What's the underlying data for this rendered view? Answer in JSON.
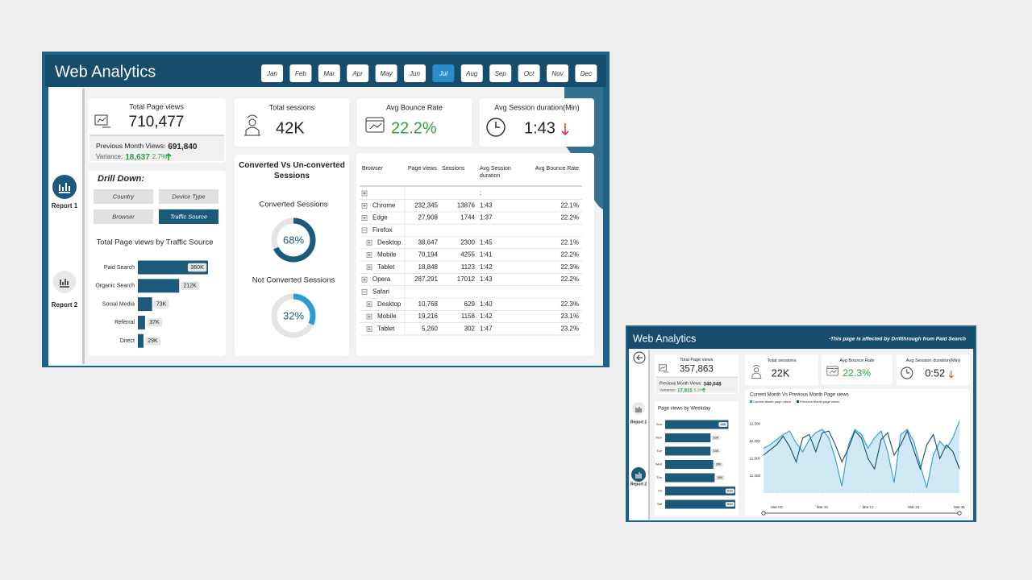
{
  "main": {
    "title": "Web Analytics",
    "months": [
      "Jan",
      "Feb",
      "Mar",
      "Apr",
      "May",
      "Jun",
      "Jul",
      "Aug",
      "Sep",
      "Oct",
      "Nov",
      "Dec"
    ],
    "selected_month": "Jul",
    "nav": [
      "Report 1",
      "Report 2"
    ],
    "page_views": {
      "label": "Total Page views",
      "value": "710,477",
      "previous_label": "Previous Month Views:",
      "previous": "691,840",
      "variance_label": "Variance:",
      "variance": "18,637",
      "variance_pct": "2.7%"
    },
    "sessions": {
      "label": "Total sessions",
      "value": "42K"
    },
    "bounce": {
      "label": "Avg Bounce Rate",
      "value": "22.2%"
    },
    "duration": {
      "label": "Avg Session duration(Min)",
      "value": "1:43"
    },
    "drill": {
      "title": "Drill Down:",
      "buttons": [
        "Country",
        "Device Type",
        "Browser",
        "Traffic Source"
      ],
      "selected": "Traffic Source"
    },
    "conversion": {
      "title": "Converted Vs Un-converted Sessions",
      "items": [
        {
          "label": "Converted Sessions",
          "value": 68,
          "value_label": "68%",
          "color": "#1b5a7a"
        },
        {
          "label": "Not Converted Sessions",
          "value": 32,
          "value_label": "32%",
          "color": "#2b9bd3"
        }
      ]
    },
    "table": {
      "columns": {
        "browser": "Browser",
        "page_views": "Page views",
        "sessions": "Sessions",
        "duration": "Avg Session duration",
        "bounce": "Avg Bounce Rate"
      },
      "rows": [
        {
          "expand": "plus",
          "duration": ":"
        },
        {
          "expand": "plus",
          "browser": "Chrome",
          "page_views": "232,345",
          "sessions": "13876",
          "duration": "1:43",
          "bounce": "22.1%"
        },
        {
          "expand": "plus",
          "browser": "Edge",
          "page_views": "27,908",
          "sessions": "1744",
          "duration": "1:37",
          "bounce": "22.2%"
        },
        {
          "expand": "minus",
          "browser": "Firefox"
        },
        {
          "expand": "plus",
          "level": 1,
          "browser": "Desktop",
          "page_views": "38,647",
          "sessions": "2300",
          "duration": "1:45",
          "bounce": "22.1%"
        },
        {
          "expand": "plus",
          "level": 1,
          "browser": "Mobile",
          "page_views": "70,194",
          "sessions": "4255",
          "duration": "1:41",
          "bounce": "22.2%"
        },
        {
          "expand": "plus",
          "level": 1,
          "browser": "Tablet",
          "page_views": "18,848",
          "sessions": "1123",
          "duration": "1:42",
          "bounce": "22.3%"
        },
        {
          "expand": "plus",
          "browser": "Opera",
          "page_views": "287,291",
          "sessions": "17012",
          "duration": "1:43",
          "bounce": "22.2%"
        },
        {
          "expand": "minus",
          "browser": "Safari"
        },
        {
          "expand": "plus",
          "level": 1,
          "browser": "Desktop",
          "page_views": "10,768",
          "sessions": "629",
          "duration": "1:40",
          "bounce": "22.3%"
        },
        {
          "expand": "plus",
          "level": 1,
          "browser": "Mobile",
          "page_views": "19,216",
          "sessions": "1158",
          "duration": "1:42",
          "bounce": "23.1%"
        },
        {
          "expand": "plus",
          "level": 1,
          "browser": "Tablet",
          "page_views": "5,260",
          "sessions": "302",
          "duration": "1:47",
          "bounce": "23.2%"
        }
      ]
    }
  },
  "drill_page": {
    "title": "Web Analytics",
    "note": "-This page is affected by Drillthrough from Paid Search",
    "nav": [
      "Report 1",
      "Report 2"
    ],
    "page_views": {
      "label": "Total Page views",
      "value": "357,863",
      "previous_label": "Previous Month Views:",
      "previous": "340,048",
      "variance_label": "Variance:",
      "variance": "17,815",
      "variance_pct": "5.2%"
    },
    "sessions": {
      "label": "Total sessions",
      "value": "22K"
    },
    "bounce": {
      "label": "Avg Bounce Rate",
      "value": "22.3%"
    },
    "duration": {
      "label": "Avg Session duration(Min)",
      "value": "0:52"
    }
  },
  "chart_data": [
    {
      "type": "bar",
      "orientation": "horizontal",
      "title": "Total Page views by Traffic Source",
      "categories": [
        "Paid Search",
        "Organic Search",
        "Social Media",
        "Referral",
        "Direct"
      ],
      "values": [
        360000,
        212000,
        73000,
        37000,
        29000
      ],
      "value_labels": [
        "360K",
        "212K",
        "73K",
        "37K",
        "29K"
      ],
      "color": "#1b5a7a"
    },
    {
      "type": "bar",
      "orientation": "horizontal",
      "title": "Page views by Weekday",
      "categories": [
        "Sun",
        "Mon",
        "Tue",
        "Wed",
        "Thu",
        "Fri",
        "Sat"
      ],
      "values": [
        46000,
        33000,
        33000,
        35000,
        36000,
        51000,
        51000
      ],
      "value_labels": [
        "46K",
        "33K",
        "33K",
        "35K",
        "36K",
        "51K",
        "51K"
      ],
      "color": "#1b5a7a"
    },
    {
      "type": "line",
      "title": "Current Month Vs Previous Month Page views",
      "x": [
        1,
        2,
        3,
        4,
        5,
        6,
        7,
        8,
        9,
        10,
        11,
        12,
        13,
        14,
        15,
        16,
        17,
        18,
        19,
        20,
        21,
        22,
        23,
        24,
        25,
        26,
        27,
        28,
        29,
        30,
        31
      ],
      "xlim": [
        1,
        31
      ],
      "xticks": [
        {
          "value": 3,
          "label": "Mar 03"
        },
        {
          "value": 10,
          "label": "Mar 10"
        },
        {
          "value": 17,
          "label": "Mar 17"
        },
        {
          "value": 24,
          "label": "Mar 24"
        },
        {
          "value": 31,
          "label": "Mar 31"
        }
      ],
      "ylim": [
        10500,
        12700
      ],
      "yticks": [
        {
          "value": 11000,
          "label": "11,000"
        },
        {
          "value": 11500,
          "label": "11,500"
        },
        {
          "value": 12000,
          "label": "12,000"
        },
        {
          "value": 12500,
          "label": "12,500"
        }
      ],
      "series": [
        {
          "name": "Current Month page views",
          "color": "#2b9bd3",
          "area": true,
          "values": [
            11800,
            11900,
            12050,
            12200,
            12300,
            11950,
            11700,
            12050,
            12250,
            12350,
            12100,
            11500,
            10700,
            11900,
            12350,
            12200,
            11800,
            12100,
            12300,
            11700,
            10800,
            12200,
            12350,
            12000,
            11300,
            10650,
            11600,
            12000,
            11800,
            12100,
            12600
          ]
        },
        {
          "name": "Previous Month page views",
          "color": "#164d6c",
          "values": [
            11600,
            11750,
            11900,
            12150,
            11850,
            11400,
            12100,
            12200,
            11700,
            12250,
            12300,
            11900,
            11400,
            11800,
            12300,
            12100,
            11500,
            11200,
            12050,
            12250,
            11600,
            11900,
            12300,
            11750,
            11200,
            11900,
            12200,
            11500,
            11900,
            11700,
            11200
          ]
        }
      ]
    }
  ]
}
